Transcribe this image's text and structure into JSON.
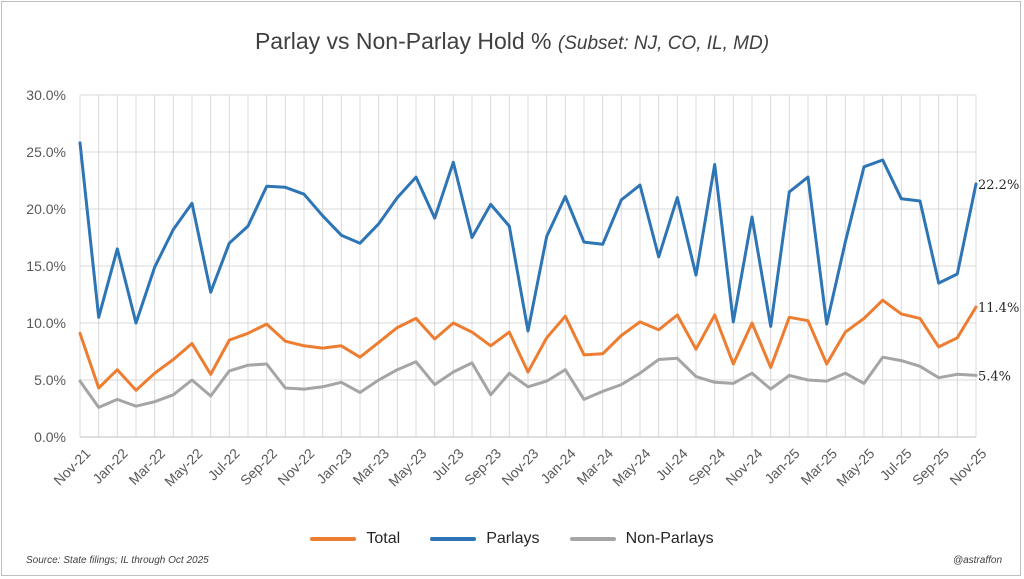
{
  "header": {
    "title": "Parlay vs Non-Parlay Hold %",
    "subtitle": "(Subset: NJ, CO, IL, MD)"
  },
  "footer": {
    "source": "Source: State filings;  IL through Oct 2025",
    "handle": "@astraffon"
  },
  "chart_data": {
    "type": "line",
    "title": "Parlay vs Non-Parlay Hold %",
    "subtitle": "(Subset: NJ, CO, IL, MD)",
    "xlabel": "",
    "ylabel": "",
    "ylim": [
      0,
      30
    ],
    "yticks": [
      "0.0%",
      "5.0%",
      "10.0%",
      "15.0%",
      "20.0%",
      "25.0%",
      "30.0%"
    ],
    "grid": true,
    "legend_position": "bottom",
    "x": [
      "Nov-21",
      "Dec-21",
      "Jan-22",
      "Feb-22",
      "Mar-22",
      "Apr-22",
      "May-22",
      "Jun-22",
      "Jul-22",
      "Aug-22",
      "Sep-22",
      "Oct-22",
      "Nov-22",
      "Dec-22",
      "Jan-23",
      "Feb-23",
      "Mar-23",
      "Apr-23",
      "May-23",
      "Jun-23",
      "Jul-23",
      "Aug-23",
      "Sep-23",
      "Oct-23",
      "Nov-23",
      "Dec-23",
      "Jan-24",
      "Feb-24",
      "Mar-24",
      "Apr-24",
      "May-24",
      "Jun-24",
      "Jul-24",
      "Aug-24",
      "Sep-24",
      "Oct-24",
      "Nov-24",
      "Dec-24",
      "Jan-25",
      "Feb-25",
      "Mar-25",
      "Apr-25",
      "May-25",
      "Jun-25",
      "Jul-25",
      "Aug-25",
      "Sep-25",
      "Oct-25",
      "Nov-25"
    ],
    "xtick_labels": [
      "Nov-21",
      "Jan-22",
      "Mar-22",
      "May-22",
      "Jul-22",
      "Sep-22",
      "Nov-22",
      "Jan-23",
      "Mar-23",
      "May-23",
      "Jul-23",
      "Sep-23",
      "Nov-23",
      "Jan-24",
      "Mar-24",
      "May-24",
      "Jul-24",
      "Sep-24",
      "Nov-24",
      "Jan-25",
      "Mar-25",
      "May-25",
      "Jul-25",
      "Sep-25",
      "Nov-25"
    ],
    "series": [
      {
        "name": "Total",
        "color": "#ED7D31",
        "end_label": "11.4%",
        "values": [
          9.1,
          4.3,
          5.9,
          4.1,
          5.6,
          6.8,
          8.2,
          5.5,
          8.5,
          9.1,
          9.9,
          8.4,
          8.0,
          7.8,
          8.0,
          7.0,
          8.3,
          9.6,
          10.4,
          8.6,
          10.0,
          9.2,
          8.0,
          9.2,
          5.7,
          8.7,
          10.6,
          7.2,
          7.3,
          8.9,
          10.1,
          9.4,
          10.7,
          7.7,
          10.7,
          6.4,
          10.0,
          6.1,
          10.5,
          10.2,
          6.4,
          9.2,
          10.4,
          12.0,
          10.8,
          10.4,
          7.9,
          8.7,
          11.4
        ]
      },
      {
        "name": "Parlays",
        "color": "#2E75B6",
        "end_label": "22.2%",
        "values": [
          25.8,
          10.5,
          16.5,
          10.0,
          14.9,
          18.2,
          20.5,
          12.7,
          17.0,
          18.5,
          22.0,
          21.9,
          21.3,
          19.4,
          17.7,
          17.0,
          18.7,
          21.0,
          22.8,
          19.2,
          24.1,
          17.5,
          20.4,
          18.5,
          9.3,
          17.6,
          21.1,
          17.1,
          16.9,
          20.8,
          22.1,
          15.8,
          21.0,
          14.2,
          23.9,
          10.1,
          19.3,
          9.7,
          21.5,
          22.8,
          9.9,
          17.1,
          23.7,
          24.3,
          20.9,
          20.7,
          13.5,
          14.3,
          22.2
        ]
      },
      {
        "name": "Non-Parlays",
        "color": "#A5A5A5",
        "end_label": "5.4%",
        "values": [
          4.9,
          2.6,
          3.3,
          2.7,
          3.1,
          3.7,
          5.0,
          3.6,
          5.8,
          6.3,
          6.4,
          4.3,
          4.2,
          4.4,
          4.8,
          3.9,
          5.0,
          5.9,
          6.6,
          4.6,
          5.7,
          6.5,
          3.7,
          5.6,
          4.4,
          4.9,
          5.9,
          3.3,
          4.0,
          4.6,
          5.6,
          6.8,
          6.9,
          5.3,
          4.8,
          4.7,
          5.6,
          4.2,
          5.4,
          5.0,
          4.9,
          5.6,
          4.7,
          7.0,
          6.7,
          6.2,
          5.2,
          5.5,
          5.4
        ]
      }
    ]
  }
}
